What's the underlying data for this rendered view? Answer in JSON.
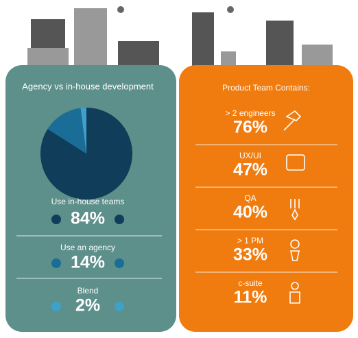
{
  "chart_data": {
    "type": "pie",
    "title": "Agency vs in-house development",
    "categories": [
      "Use in-house teams",
      "Use an agency",
      "Blend"
    ],
    "values": [
      84,
      14,
      2
    ],
    "value_labels": [
      "84%",
      "14%",
      "2%"
    ],
    "colors": [
      "#0f3d5a",
      "#1a6d97",
      "#3fa0c8"
    ]
  },
  "product_team": {
    "title": "Product Team Contains:",
    "items": [
      {
        "label": "> 2 engineers",
        "value": "76%"
      },
      {
        "label": "UX/UI",
        "value": "47%"
      },
      {
        "label": "QA",
        "value": "40%"
      },
      {
        "label": "> 1 PM",
        "value": "33%"
      },
      {
        "label": "c-suite",
        "value": "11%"
      }
    ]
  }
}
